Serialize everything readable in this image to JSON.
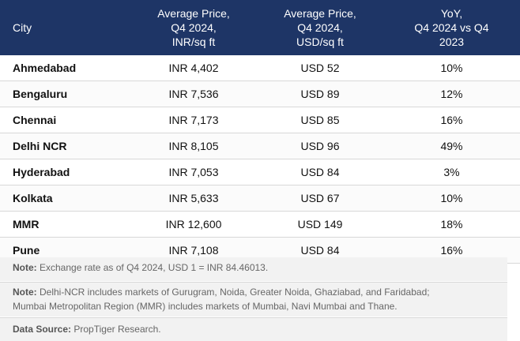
{
  "header": {
    "city": "City",
    "avg_price_inr": [
      "Average Price,",
      "Q4 2024,",
      "INR/sq ft"
    ],
    "avg_price_usd": [
      "Average Price,",
      "Q4 2024,",
      "USD/sq ft"
    ],
    "yoy": [
      "YoY,",
      "Q4 2024 vs Q4",
      "2023"
    ]
  },
  "rows": [
    {
      "city": "Ahmedabad",
      "inr": "INR 4,402",
      "usd": "USD 52",
      "yoy": "10%"
    },
    {
      "city": "Bengaluru",
      "inr": "INR 7,536",
      "usd": "USD 89",
      "yoy": "12%"
    },
    {
      "city": "Chennai",
      "inr": "INR 7,173",
      "usd": "USD 85",
      "yoy": "16%"
    },
    {
      "city": "Delhi NCR",
      "inr": "INR 8,105",
      "usd": "USD 96",
      "yoy": "49%"
    },
    {
      "city": "Hyderabad",
      "inr": "INR 7,053",
      "usd": "USD 84",
      "yoy": "3%"
    },
    {
      "city": "Kolkata",
      "inr": "INR 5,633",
      "usd": "USD 67",
      "yoy": "10%"
    },
    {
      "city": "MMR",
      "inr": "INR 12,600",
      "usd": "USD 149",
      "yoy": "18%"
    },
    {
      "city": "Pune",
      "inr": "INR 7,108",
      "usd": "USD 84",
      "yoy": "16%"
    }
  ],
  "notes": {
    "note1_label": "Note:",
    "note1_text": " Exchange rate as of Q4 2024, USD 1 = INR 84.46013.",
    "note2_label": "Note:",
    "note2_line1": " Delhi-NCR includes markets of Gurugram, Noida, Greater Noida, Ghaziabad, and Faridabad;",
    "note2_line2": "Mumbai Metropolitan Region (MMR) includes markets of Mumbai, Navi Mumbai and Thane.",
    "source_label": "Data Source:",
    "source_text": " PropTiger Research."
  }
}
